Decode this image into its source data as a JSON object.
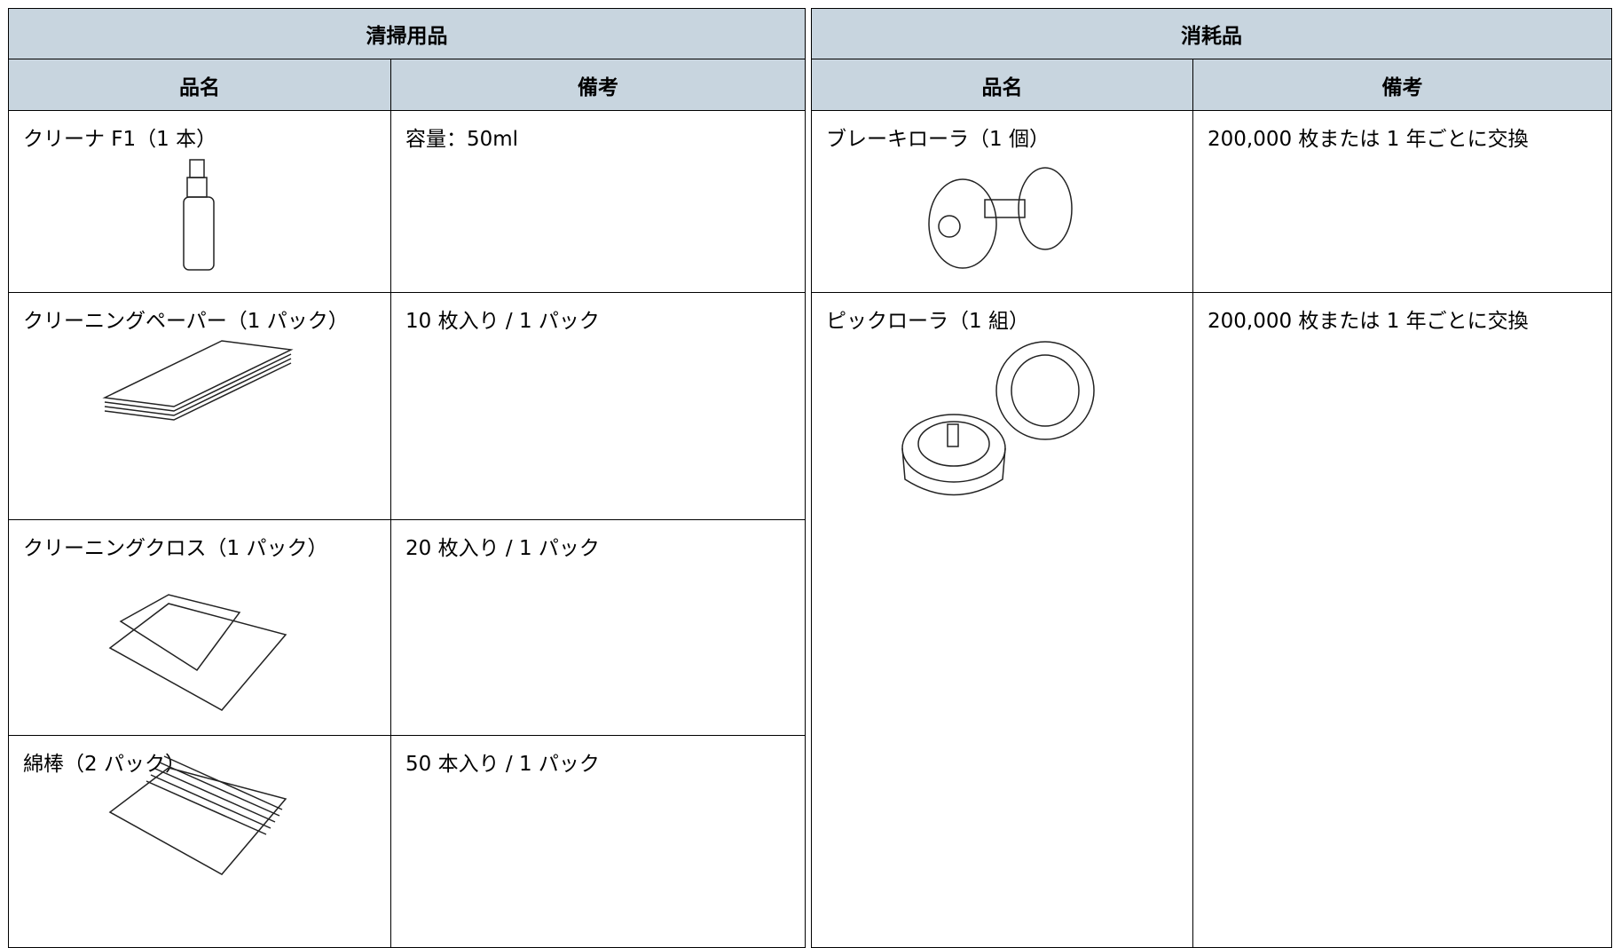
{
  "table": {
    "groups": [
      "清掃用品",
      "消耗品"
    ],
    "columns": [
      "品名",
      "備考",
      "品名",
      "備考"
    ],
    "cleaning": [
      {
        "name": "クリーナ F1（1 本）",
        "note": "容量：50ml"
      },
      {
        "name": "クリーニングペーパー（1 パック）",
        "note": "10 枚入り / 1 パック"
      },
      {
        "name": "クリーニングクロス（1 パック）",
        "note": "20 枚入り / 1 パック"
      },
      {
        "name": "綿棒（2 パック）",
        "note": "50 本入り / 1 パック"
      }
    ],
    "consumables": [
      {
        "name": "ブレーキローラ（1 個）",
        "note": "200,000 枚または 1 年ごとに交換"
      },
      {
        "name": "ピックローラ（1 組）",
        "note": "200,000 枚または 1 年ごとに交換"
      }
    ]
  }
}
